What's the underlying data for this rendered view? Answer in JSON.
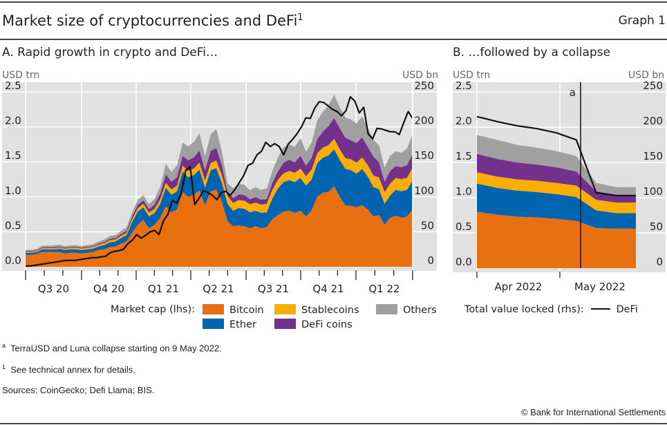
{
  "header": {
    "title": "Market size of cryptocurrencies and DeFi",
    "title_sup": "1",
    "graph_number": "Graph 1"
  },
  "panel_a": {
    "title": "A. Rapid growth in crypto and DeFi…",
    "left_unit": "USD trn",
    "right_unit": "USD bn"
  },
  "panel_b": {
    "title": "B. …followed by a collapse",
    "left_unit": "USD trn",
    "right_unit": "USD bn",
    "annotation": "a"
  },
  "legend": {
    "market_cap_label": "Market cap (lhs):",
    "tvl_label": "Total value locked (rhs):",
    "items": [
      {
        "name": "Bitcoin",
        "color": "#E8700F"
      },
      {
        "name": "Stablecoins",
        "color": "#F9AE00"
      },
      {
        "name": "Others",
        "color": "#A0A0A0"
      },
      {
        "name": "Ether",
        "color": "#0064B0"
      },
      {
        "name": "DeFi coins",
        "color": "#73318C"
      }
    ],
    "line_item": {
      "name": "DeFi",
      "color": "#111111"
    }
  },
  "footnotes": {
    "a_mark": "a",
    "a_text": "TerraUSD and Luna collapse starting on 9 May 2022.",
    "one_mark": "1",
    "one_text": "See technical annex for details.",
    "sources": "Sources: CoinGecko; Defi Llama; BIS.",
    "copyright": "© Bank for International Settlements"
  },
  "chart_data": [
    {
      "type": "area",
      "title": "A. Rapid growth in crypto and DeFi…",
      "stacked": true,
      "x_tick_labels": [
        "Q3 20",
        "Q4 20",
        "Q1 21",
        "Q2 21",
        "Q3 21",
        "Q4 21",
        "Q1 22"
      ],
      "x_range": [
        "2020-07",
        "2022-03"
      ],
      "ylabel_left": "USD trn",
      "ylabel_right": "USD bn",
      "ylim_left": [
        0,
        2.5
      ],
      "yticks_left": [
        "0.0",
        "0.5",
        "1.0",
        "1.5",
        "2.0",
        "2.5"
      ],
      "ylim_right": [
        0,
        250
      ],
      "yticks_right": [
        "0",
        "50",
        "100",
        "150",
        "200",
        "250"
      ],
      "grid": true,
      "n_points": 70,
      "series": [
        {
          "name": "Bitcoin",
          "axis": "left",
          "values": [
            0.17,
            0.17,
            0.18,
            0.21,
            0.21,
            0.21,
            0.21,
            0.19,
            0.2,
            0.2,
            0.19,
            0.2,
            0.21,
            0.24,
            0.25,
            0.28,
            0.29,
            0.33,
            0.36,
            0.49,
            0.6,
            0.67,
            0.55,
            0.6,
            0.7,
            0.87,
            0.78,
            0.82,
            1.07,
            1.0,
            1.03,
            1.09,
            0.88,
            1.08,
            1.1,
            0.93,
            0.65,
            0.58,
            0.59,
            0.58,
            0.55,
            0.58,
            0.55,
            0.57,
            0.68,
            0.74,
            0.79,
            0.8,
            0.77,
            0.8,
            0.72,
            0.81,
            1.0,
            1.06,
            1.07,
            1.15,
            1.0,
            0.88,
            0.87,
            0.85,
            0.88,
            0.82,
            0.72,
            0.74,
            0.6,
            0.7,
            0.73,
            0.7,
            0.72,
            0.82
          ]
        },
        {
          "name": "Ether",
          "axis": "left",
          "values": [
            0.03,
            0.03,
            0.03,
            0.04,
            0.04,
            0.04,
            0.05,
            0.05,
            0.05,
            0.05,
            0.05,
            0.05,
            0.05,
            0.05,
            0.06,
            0.07,
            0.07,
            0.08,
            0.09,
            0.15,
            0.19,
            0.18,
            0.17,
            0.17,
            0.2,
            0.26,
            0.25,
            0.26,
            0.29,
            0.28,
            0.28,
            0.3,
            0.25,
            0.3,
            0.31,
            0.27,
            0.25,
            0.22,
            0.25,
            0.25,
            0.23,
            0.22,
            0.22,
            0.21,
            0.3,
            0.38,
            0.42,
            0.44,
            0.44,
            0.47,
            0.44,
            0.44,
            0.48,
            0.5,
            0.52,
            0.53,
            0.53,
            0.52,
            0.51,
            0.48,
            0.52,
            0.47,
            0.42,
            0.37,
            0.3,
            0.32,
            0.37,
            0.38,
            0.38,
            0.42
          ]
        },
        {
          "name": "Stablecoins",
          "axis": "left",
          "values": [
            0.012,
            0.012,
            0.013,
            0.014,
            0.015,
            0.016,
            0.017,
            0.018,
            0.019,
            0.02,
            0.021,
            0.022,
            0.023,
            0.025,
            0.027,
            0.029,
            0.03,
            0.032,
            0.035,
            0.04,
            0.045,
            0.05,
            0.055,
            0.06,
            0.065,
            0.07,
            0.075,
            0.08,
            0.085,
            0.09,
            0.095,
            0.1,
            0.1,
            0.105,
            0.108,
            0.11,
            0.112,
            0.113,
            0.114,
            0.115,
            0.116,
            0.117,
            0.118,
            0.12,
            0.122,
            0.125,
            0.128,
            0.13,
            0.133,
            0.135,
            0.137,
            0.14,
            0.142,
            0.145,
            0.148,
            0.15,
            0.152,
            0.155,
            0.157,
            0.16,
            0.162,
            0.164,
            0.165,
            0.167,
            0.168,
            0.169,
            0.17,
            0.172,
            0.174,
            0.176
          ]
        },
        {
          "name": "DeFi coins",
          "axis": "left",
          "values": [
            0.01,
            0.01,
            0.01,
            0.012,
            0.013,
            0.013,
            0.013,
            0.012,
            0.012,
            0.012,
            0.012,
            0.012,
            0.013,
            0.015,
            0.018,
            0.02,
            0.022,
            0.025,
            0.03,
            0.04,
            0.05,
            0.05,
            0.05,
            0.06,
            0.08,
            0.12,
            0.11,
            0.12,
            0.14,
            0.15,
            0.16,
            0.17,
            0.15,
            0.17,
            0.18,
            0.14,
            0.06,
            0.07,
            0.08,
            0.08,
            0.07,
            0.08,
            0.07,
            0.07,
            0.1,
            0.12,
            0.15,
            0.16,
            0.15,
            0.18,
            0.15,
            0.17,
            0.2,
            0.23,
            0.27,
            0.3,
            0.3,
            0.29,
            0.27,
            0.28,
            0.29,
            0.26,
            0.27,
            0.22,
            0.15,
            0.18,
            0.17,
            0.17,
            0.18,
            0.2
          ]
        },
        {
          "name": "Others",
          "axis": "left",
          "values": [
            0.02,
            0.02,
            0.02,
            0.025,
            0.025,
            0.025,
            0.025,
            0.025,
            0.025,
            0.025,
            0.025,
            0.025,
            0.025,
            0.03,
            0.035,
            0.04,
            0.04,
            0.045,
            0.05,
            0.06,
            0.07,
            0.07,
            0.07,
            0.08,
            0.1,
            0.15,
            0.14,
            0.17,
            0.19,
            0.2,
            0.22,
            0.25,
            0.2,
            0.24,
            0.27,
            0.2,
            0.12,
            0.14,
            0.15,
            0.15,
            0.13,
            0.14,
            0.14,
            0.15,
            0.17,
            0.2,
            0.22,
            0.22,
            0.22,
            0.25,
            0.2,
            0.22,
            0.27,
            0.28,
            0.3,
            0.33,
            0.3,
            0.29,
            0.3,
            0.28,
            0.3,
            0.27,
            0.24,
            0.24,
            0.2,
            0.22,
            0.21,
            0.21,
            0.24,
            0.28
          ]
        },
        {
          "name": "DeFi",
          "axis": "right",
          "type": "line",
          "values": [
            1,
            1,
            2,
            3,
            4,
            5,
            6,
            7,
            8,
            9,
            9,
            9,
            10,
            11,
            12,
            13,
            13,
            14,
            15,
            20,
            22,
            23,
            25,
            33,
            38,
            46,
            41,
            45,
            50,
            52,
            46,
            66,
            75,
            95,
            91,
            105,
            138,
            143,
            89,
            98,
            109,
            106,
            102,
            96,
            106,
            108,
            102,
            110,
            120,
            130,
            145,
            148,
            160,
            165,
            178,
            172,
            176,
            172,
            160,
            175,
            182,
            190,
            200,
            213,
            212,
            227,
            236,
            235,
            230,
            225,
            222,
            216,
            223,
            243,
            237,
            220,
            228,
            190,
            183,
            198,
            197,
            195,
            193,
            193,
            189,
            206,
            222,
            212
          ]
        }
      ],
      "line_x_points_note": "DeFi line has its own sampling"
    },
    {
      "type": "area",
      "title": "B. …followed by a collapse",
      "stacked": true,
      "x_tick_labels": [
        "Apr 2022",
        "May 2022"
      ],
      "ylabel_left": "USD trn",
      "ylabel_right": "USD bn",
      "ylim_left": [
        0,
        2.5
      ],
      "yticks_left": [
        "0.0",
        "0.5",
        "1.0",
        "1.5",
        "2.0",
        "2.5"
      ],
      "ylim_right": [
        0,
        250
      ],
      "yticks_right": [
        "0",
        "50",
        "100",
        "150",
        "200",
        "250"
      ],
      "grid": true,
      "annotation": {
        "label": "a",
        "event": "TerraUSD and Luna collapse",
        "date": "2022-05-09"
      },
      "x": [
        "2022-03-30",
        "2022-04-06",
        "2022-04-13",
        "2022-04-20",
        "2022-04-27",
        "2022-05-03",
        "2022-05-09",
        "2022-05-16",
        "2022-05-20"
      ],
      "series": [
        {
          "name": "Bitcoin",
          "axis": "left",
          "values": [
            0.8,
            0.76,
            0.73,
            0.72,
            0.7,
            0.67,
            0.57,
            0.56,
            0.56
          ]
        },
        {
          "name": "Ether",
          "axis": "left",
          "values": [
            0.4,
            0.38,
            0.37,
            0.36,
            0.35,
            0.34,
            0.25,
            0.22,
            0.22
          ]
        },
        {
          "name": "Stablecoins",
          "axis": "left",
          "values": [
            0.16,
            0.16,
            0.16,
            0.16,
            0.16,
            0.16,
            0.15,
            0.15,
            0.15
          ]
        },
        {
          "name": "DeFi coins",
          "axis": "left",
          "values": [
            0.26,
            0.25,
            0.24,
            0.23,
            0.22,
            0.2,
            0.12,
            0.11,
            0.11
          ]
        },
        {
          "name": "Others",
          "axis": "left",
          "values": [
            0.27,
            0.27,
            0.25,
            0.24,
            0.23,
            0.22,
            0.12,
            0.11,
            0.11
          ]
        },
        {
          "name": "DeFi",
          "axis": "right",
          "type": "line",
          "values": [
            215,
            208,
            202,
            198,
            192,
            182,
            107,
            103,
            103
          ]
        }
      ]
    }
  ]
}
